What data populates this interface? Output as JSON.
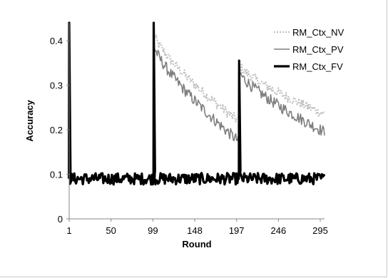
{
  "chart_data": {
    "type": "line",
    "title": "",
    "xlabel": "Round",
    "ylabel": "Accuracy",
    "xlim": [
      1,
      300
    ],
    "ylim": [
      0,
      0.44
    ],
    "x_ticks": [
      "1",
      "50",
      "99",
      "148",
      "197",
      "246",
      "295"
    ],
    "y_ticks": [
      "0",
      "0.1",
      "0.2",
      "0.3",
      "0.4"
    ],
    "legend_position": "top-right",
    "series": [
      {
        "name": "RM_Ctx_NV",
        "color": "#bfbfbf",
        "style": "dotted",
        "segments": [
          {
            "x_start": 100,
            "x_end": 199,
            "y_start": 0.415,
            "y_end": 0.22
          },
          {
            "x_start": 200,
            "x_end": 300,
            "y_start": 0.345,
            "y_end": 0.235
          }
        ],
        "baseline": 0.09
      },
      {
        "name": "RM_Ctx_PV",
        "color": "#7f7f7f",
        "style": "solid",
        "segments": [
          {
            "x_start": 100,
            "x_end": 199,
            "y_start": 0.39,
            "y_end": 0.175
          },
          {
            "x_start": 200,
            "x_end": 300,
            "y_start": 0.33,
            "y_end": 0.195
          }
        ],
        "baseline": 0.09
      },
      {
        "name": "RM_Ctx_FV",
        "color": "#000000",
        "style": "solid-thick",
        "baseline": 0.09,
        "spikes": [
          {
            "x": 1,
            "y": 0.44
          },
          {
            "x": 100,
            "y": 0.44
          },
          {
            "x": 200,
            "y": 0.355
          }
        ]
      }
    ]
  }
}
